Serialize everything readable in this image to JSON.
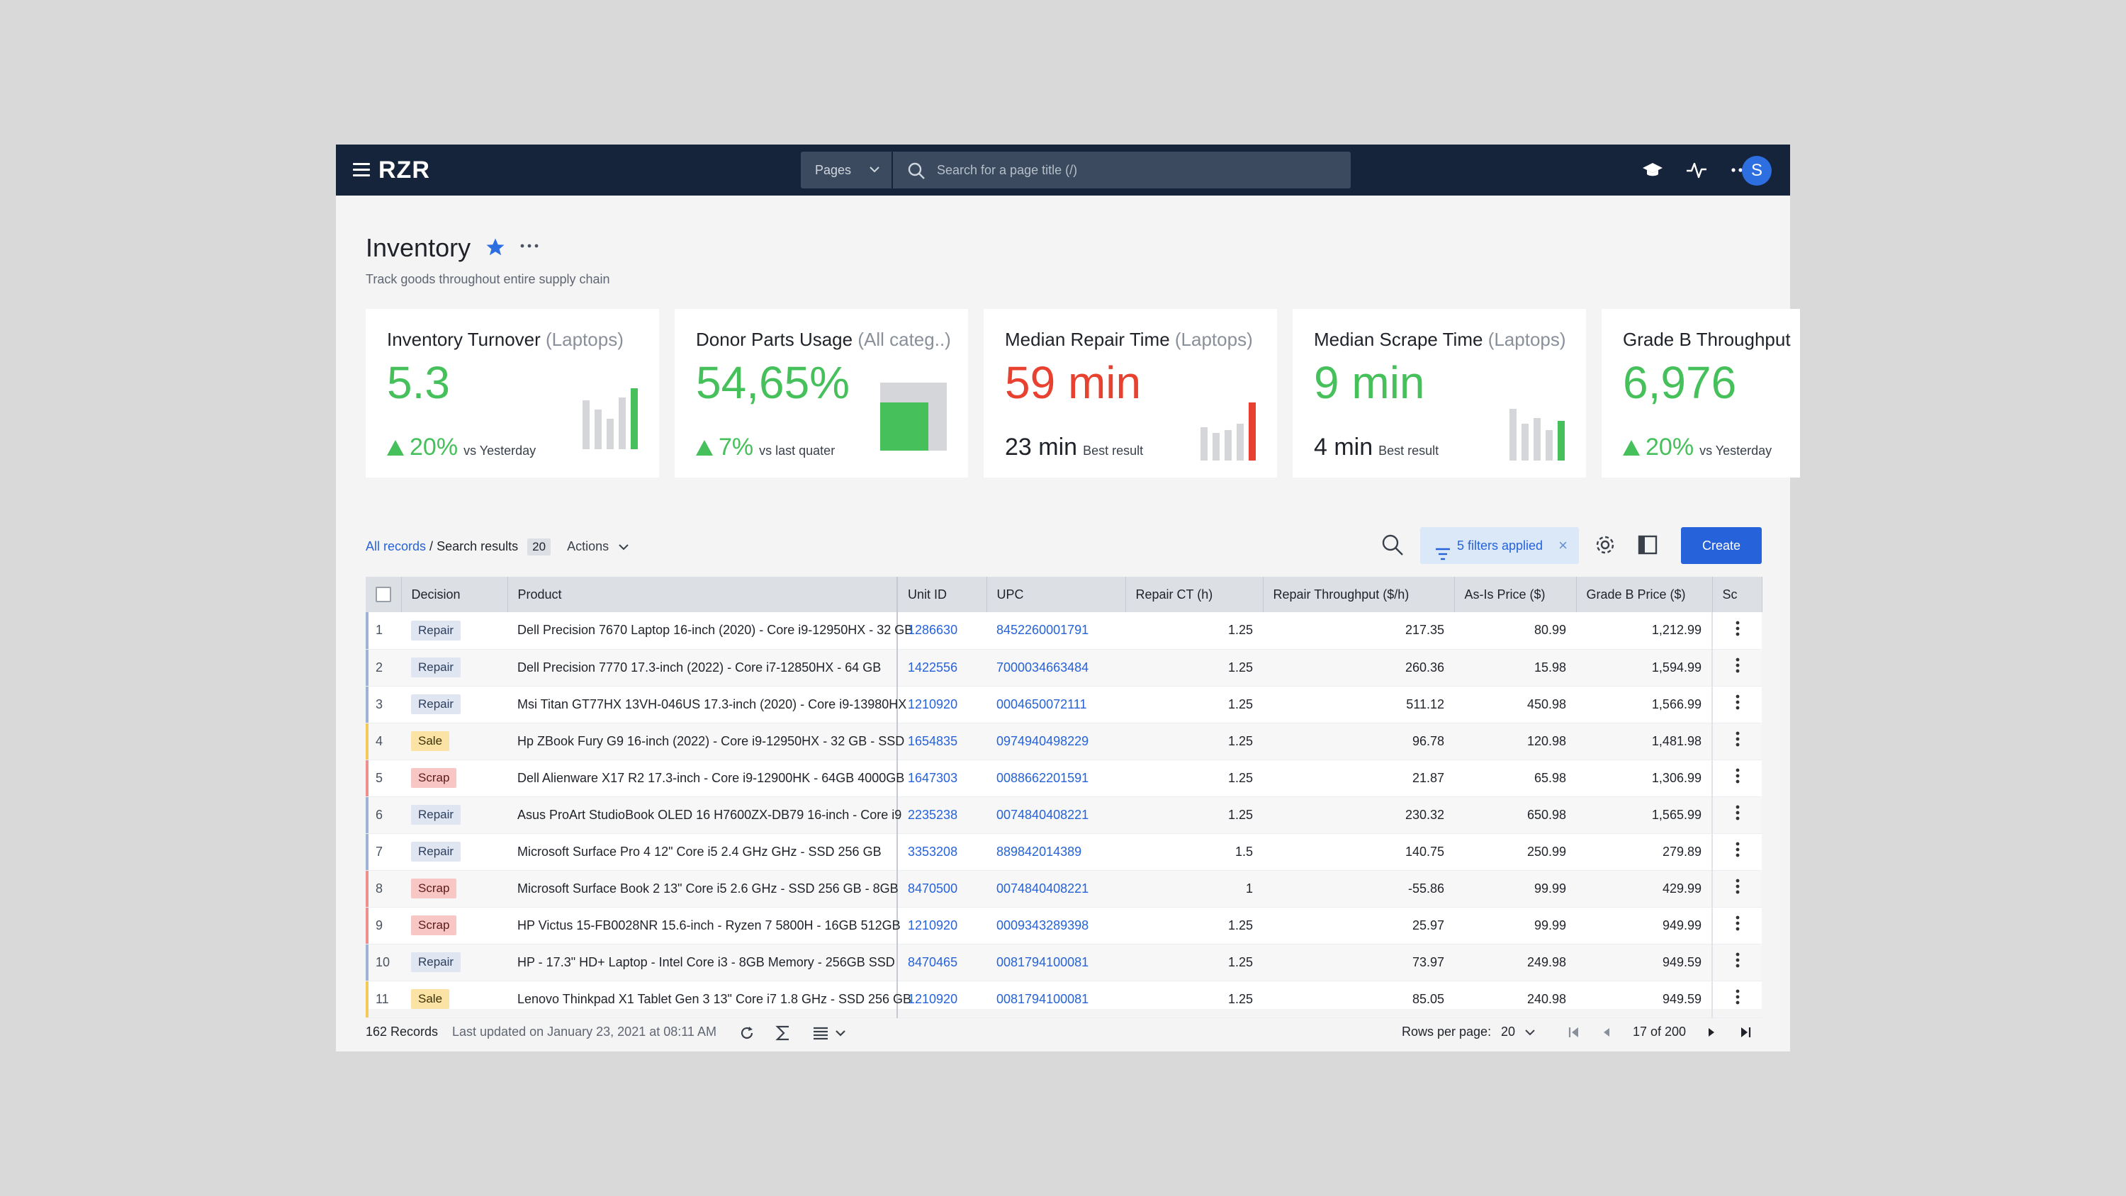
{
  "app": {
    "logo": "RZR"
  },
  "topbar": {
    "pages_label": "Pages",
    "search_placeholder": "Search for a page title (/)",
    "avatar_initial": "S"
  },
  "page": {
    "title": "Inventory",
    "subtitle": "Track goods throughout entire supply chain"
  },
  "kpis": [
    {
      "title": "Inventory Turnover",
      "qualifier": "(Laptops)",
      "value": "5.3",
      "value_color": "#45c05a",
      "delta": "20%",
      "delta_label": "vs Yesterday",
      "trend": "up",
      "bars": [
        0.8,
        0.65,
        0.5,
        0.85,
        1.0
      ],
      "highlight": "#45c05a"
    },
    {
      "title": "Donor Parts Usage",
      "qualifier": "(All categ..)",
      "value": "54,65%",
      "value_color": "#45c05a",
      "delta": "7%",
      "delta_label": "vs last quater",
      "trend": "up",
      "fill": 0.6547,
      "highlight": "#45c05a"
    },
    {
      "title": "Median Repair Time",
      "qualifier": "(Laptops)",
      "value": "59 min",
      "value_color": "#e8412f",
      "delta": "23 min",
      "delta_label": "Best result",
      "bars": [
        0.55,
        0.45,
        0.5,
        0.6,
        0.95
      ],
      "highlight": "#e8412f"
    },
    {
      "title": "Median Scrape Time",
      "qualifier": "(Laptops)",
      "value": "9 min",
      "value_color": "#45c05a",
      "delta": "4 min",
      "delta_label": "Best result",
      "bars": [
        0.85,
        0.6,
        0.7,
        0.5,
        0.65
      ],
      "highlight": "#45c05a"
    },
    {
      "title": "Grade B Throughput",
      "qualifier": "",
      "value": "6,976",
      "value_color": "#45c05a",
      "delta": "20%",
      "delta_label": "vs Yesterday",
      "trend": "up",
      "highlight": "#45c05a"
    }
  ],
  "toolbar": {
    "all_records": "All records",
    "separator": "/",
    "search_results": "Search results",
    "results_count": "20",
    "actions": "Actions",
    "filters_label": "5 filters applied",
    "create_label": "Create"
  },
  "table": {
    "columns": [
      "Decision",
      "Product",
      "Unit ID",
      "UPC",
      "Repair CT (h)",
      "Repair Throughput ($/h)",
      "As-Is Price ($)",
      "Grade B Price ($)",
      "Sc"
    ],
    "rows": [
      {
        "n": "1",
        "decision": "Repair",
        "product": "Dell Precision 7670 Laptop 16-inch (2020) - Core i9-12950HX - 32 GB",
        "unit": "1286630",
        "upc": "8452260001791",
        "ct": "1.25",
        "tp": "217.35",
        "asis": "80.99",
        "gradeb": "1,212.99"
      },
      {
        "n": "2",
        "decision": "Repair",
        "product": "Dell Precision 7770 17.3-inch (2022) - Core i7-12850HX - 64 GB",
        "unit": "1422556",
        "upc": "7000034663484",
        "ct": "1.25",
        "tp": "260.36",
        "asis": "15.98",
        "gradeb": "1,594.99"
      },
      {
        "n": "3",
        "decision": "Repair",
        "product": "Msi Titan GT77HX 13VH-046US 17.3-inch (2020) - Core i9-13980HX",
        "unit": "1210920",
        "upc": "0004650072111",
        "ct": "1.25",
        "tp": "511.12",
        "asis": "450.98",
        "gradeb": "1,566.99"
      },
      {
        "n": "4",
        "decision": "Sale",
        "product": "Hp ZBook Fury G9 16-inch (2022) - Core i9-12950HX - 32 GB - SSD",
        "unit": "1654835",
        "upc": "0974940498229",
        "ct": "1.25",
        "tp": "96.78",
        "asis": "120.98",
        "gradeb": "1,481.98"
      },
      {
        "n": "5",
        "decision": "Scrap",
        "product": "Dell Alienware X17 R2 17.3-inch - Core i9-12900HK - 64GB 4000GB",
        "unit": "1647303",
        "upc": "0088662201591",
        "ct": "1.25",
        "tp": "21.87",
        "asis": "65.98",
        "gradeb": "1,306.99"
      },
      {
        "n": "6",
        "decision": "Repair",
        "product": "Asus ProArt StudioBook OLED 16 H7600ZX-DB79 16-inch - Core i9",
        "unit": "2235238",
        "upc": "0074840408221",
        "ct": "1.25",
        "tp": "230.32",
        "asis": "650.98",
        "gradeb": "1,565.99"
      },
      {
        "n": "7",
        "decision": "Repair",
        "product": "Microsoft Surface Pro 4 12\" Core i5 2.4 GHz GHz - SSD 256 GB",
        "unit": "3353208",
        "upc": "889842014389",
        "ct": "1.5",
        "tp": "140.75",
        "asis": "250.99",
        "gradeb": "279.89"
      },
      {
        "n": "8",
        "decision": "Scrap",
        "product": "Microsoft Surface Book 2 13\" Core i5 2.6 GHz - SSD 256 GB - 8GB",
        "unit": "8470500",
        "upc": "0074840408221",
        "ct": "1",
        "tp": "-55.86",
        "asis": "99.99",
        "gradeb": "429.99"
      },
      {
        "n": "9",
        "decision": "Scrap",
        "product": "HP Victus 15-FB0028NR 15.6-inch - Ryzen 7 5800H - 16GB 512GB",
        "unit": "1210920",
        "upc": "0009343289398",
        "ct": "1.25",
        "tp": "25.97",
        "asis": "99.99",
        "gradeb": "949.99"
      },
      {
        "n": "10",
        "decision": "Repair",
        "product": "HP - 17.3\" HD+ Laptop - Intel Core i3 - 8GB Memory - 256GB SSD",
        "unit": "8470465",
        "upc": "0081794100081",
        "ct": "1.25",
        "tp": "73.97",
        "asis": "249.98",
        "gradeb": "949.59"
      },
      {
        "n": "11",
        "decision": "Sale",
        "product": "Lenovo Thinkpad X1 Tablet Gen 3 13\" Core i7 1.8 GHz - SSD 256 GB",
        "unit": "1210920",
        "upc": "0081794100081",
        "ct": "1.25",
        "tp": "85.05",
        "asis": "240.98",
        "gradeb": "949.59"
      }
    ],
    "decision_colors": {
      "Repair": "#9cb3d6",
      "Sale": "#f3c95a",
      "Scrap": "#ee8f8f"
    }
  },
  "footer": {
    "records": "162 Records",
    "last_updated": "Last updated on January 23, 2021 at 08:11 AM",
    "rows_per_page_label": "Rows per page:",
    "rows_per_page": "20",
    "page_info": "17 of 200"
  }
}
